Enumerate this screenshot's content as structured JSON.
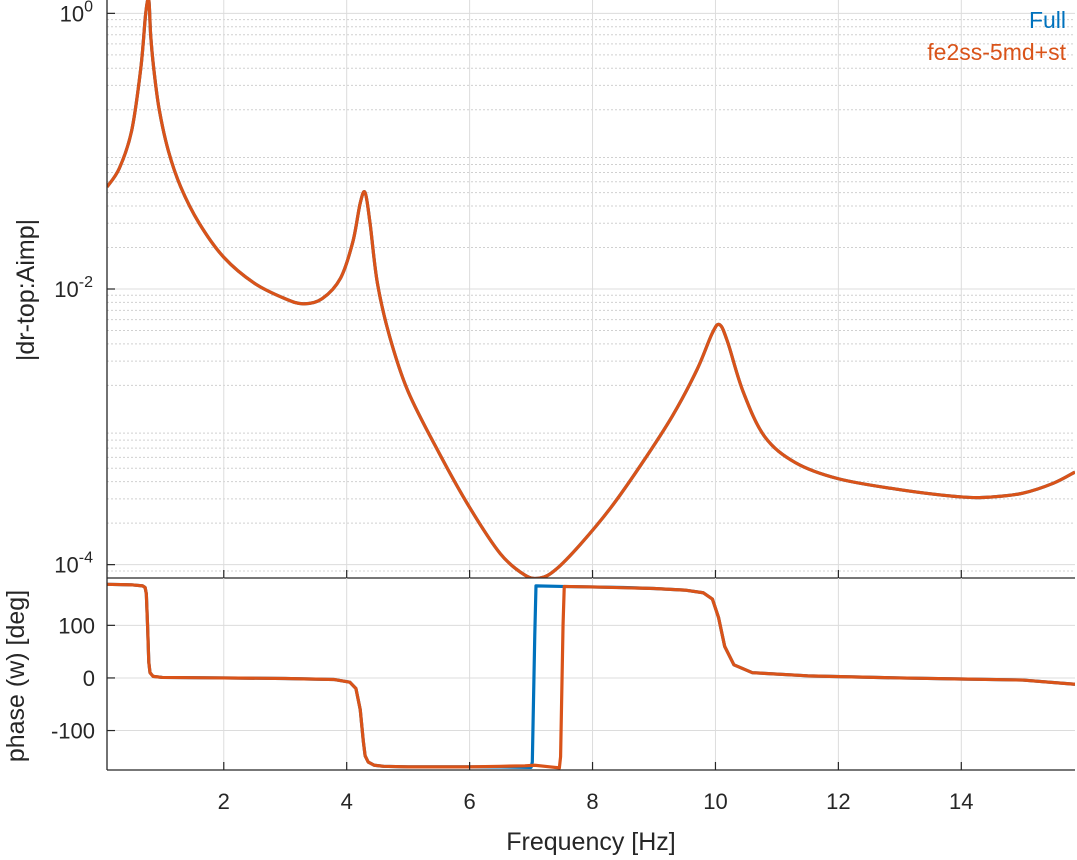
{
  "chart_data": [
    {
      "type": "line",
      "panel": "magnitude",
      "ylabel": "|dr-top:Aimp|",
      "yscale": "log",
      "xlim": [
        0.1,
        15.85
      ],
      "ylim": [
        8e-05,
        1.25
      ],
      "yticks": [
        0.0001,
        0.01,
        1
      ],
      "ytick_labels": [
        {
          "base": "10",
          "exp": "-4"
        },
        {
          "base": "10",
          "exp": "-2"
        },
        {
          "base": "10",
          "exp": "0"
        }
      ],
      "grid": true,
      "minor_grid": true,
      "legend_position": "top-right",
      "series": [
        {
          "name": "Full",
          "color": "#0072BD",
          "x": [
            0.1,
            0.3,
            0.5,
            0.65,
            0.73,
            0.78,
            0.81,
            0.86,
            0.95,
            1.1,
            1.3,
            1.6,
            2.0,
            2.5,
            3.0,
            3.3,
            3.6,
            3.9,
            4.1,
            4.22,
            4.3,
            4.38,
            4.5,
            4.7,
            5.0,
            5.5,
            6.0,
            6.5,
            6.9,
            7.15,
            7.4,
            7.8,
            8.3,
            8.8,
            9.3,
            9.7,
            9.95,
            10.07,
            10.2,
            10.45,
            10.8,
            11.3,
            12.0,
            13.0,
            14.0,
            14.5,
            15.0,
            15.5,
            15.85
          ],
          "y": [
            0.055,
            0.075,
            0.14,
            0.4,
            1.0,
            1.25,
            0.7,
            0.4,
            0.2,
            0.1,
            0.055,
            0.03,
            0.017,
            0.011,
            0.0085,
            0.0078,
            0.0085,
            0.012,
            0.022,
            0.042,
            0.05,
            0.03,
            0.011,
            0.0045,
            0.0018,
            0.00065,
            0.00026,
            0.00012,
            8.4e-05,
            8e-05,
            9.2e-05,
            0.00014,
            0.00026,
            0.00054,
            0.0012,
            0.0026,
            0.0048,
            0.0055,
            0.0041,
            0.0018,
            0.00085,
            0.00055,
            0.00042,
            0.00035,
            0.00031,
            0.00031,
            0.00033,
            0.00039,
            0.00047
          ]
        },
        {
          "name": "fe2ss-5md+st",
          "color": "#D95319",
          "x": [
            0.1,
            0.3,
            0.5,
            0.65,
            0.73,
            0.78,
            0.81,
            0.86,
            0.95,
            1.1,
            1.3,
            1.6,
            2.0,
            2.5,
            3.0,
            3.3,
            3.6,
            3.9,
            4.1,
            4.22,
            4.3,
            4.38,
            4.5,
            4.7,
            5.0,
            5.5,
            6.0,
            6.5,
            6.9,
            7.15,
            7.4,
            7.8,
            8.3,
            8.8,
            9.3,
            9.7,
            9.95,
            10.07,
            10.2,
            10.45,
            10.8,
            11.3,
            12.0,
            13.0,
            14.0,
            14.5,
            15.0,
            15.5,
            15.85
          ],
          "y": [
            0.055,
            0.075,
            0.14,
            0.4,
            1.0,
            1.25,
            0.7,
            0.4,
            0.2,
            0.1,
            0.055,
            0.03,
            0.017,
            0.011,
            0.0085,
            0.0078,
            0.0085,
            0.012,
            0.022,
            0.042,
            0.05,
            0.03,
            0.011,
            0.0045,
            0.0018,
            0.00065,
            0.00026,
            0.00012,
            8.4e-05,
            8e-05,
            9.2e-05,
            0.00014,
            0.00026,
            0.00054,
            0.0012,
            0.0026,
            0.0048,
            0.0055,
            0.0041,
            0.0018,
            0.00085,
            0.00055,
            0.00042,
            0.00035,
            0.00031,
            0.00031,
            0.00033,
            0.00039,
            0.00047
          ]
        }
      ]
    },
    {
      "type": "line",
      "panel": "phase",
      "xlabel": "Frequency [Hz]",
      "ylabel": "phase (w) [deg]",
      "xlim": [
        0.1,
        15.85
      ],
      "ylim": [
        -175,
        190
      ],
      "xticks": [
        2,
        4,
        6,
        8,
        10,
        12,
        14
      ],
      "yticks": [
        -100,
        0,
        100
      ],
      "grid": true,
      "series": [
        {
          "name": "Full",
          "color": "#0072BD",
          "x": [
            0.1,
            0.5,
            0.68,
            0.72,
            0.74,
            0.76,
            0.78,
            0.8,
            0.85,
            1.0,
            2.0,
            3.0,
            3.8,
            4.05,
            4.15,
            4.22,
            4.27,
            4.3,
            4.35,
            4.45,
            4.6,
            5.0,
            6.0,
            6.5,
            7.0,
            7.02,
            7.06,
            7.08,
            7.5,
            8.5,
            9.0,
            9.5,
            9.8,
            9.95,
            10.05,
            10.15,
            10.3,
            10.6,
            11.5,
            13.0,
            14.0,
            15.0,
            15.85
          ],
          "y": [
            178,
            177,
            175,
            172,
            160,
            100,
            30,
            10,
            3,
            1,
            0,
            -1,
            -3,
            -8,
            -20,
            -60,
            -120,
            -148,
            -160,
            -166,
            -168,
            -169,
            -169,
            -169,
            -170,
            -160,
            80,
            175,
            174,
            172,
            170,
            167,
            162,
            150,
            115,
            60,
            25,
            10,
            4,
            0,
            -2,
            -4,
            -12
          ]
        },
        {
          "name": "fe2ss-5md+st",
          "color": "#D95319",
          "x": [
            0.1,
            0.5,
            0.68,
            0.72,
            0.74,
            0.76,
            0.78,
            0.8,
            0.85,
            1.0,
            2.0,
            3.0,
            3.8,
            4.05,
            4.15,
            4.22,
            4.27,
            4.3,
            4.35,
            4.45,
            4.6,
            5.0,
            6.0,
            6.5,
            6.9,
            7.06,
            7.3,
            7.46,
            7.48,
            7.52,
            7.54,
            8.0,
            9.0,
            9.5,
            9.8,
            9.95,
            10.05,
            10.15,
            10.3,
            10.6,
            11.5,
            13.0,
            14.0,
            15.0,
            15.85
          ],
          "y": [
            178,
            177,
            175,
            172,
            160,
            100,
            30,
            10,
            3,
            1,
            0,
            -1,
            -3,
            -8,
            -20,
            -60,
            -120,
            -148,
            -160,
            -166,
            -168,
            -169,
            -169,
            -168,
            -167,
            -166,
            -169,
            -171,
            -150,
            100,
            174,
            173,
            170,
            167,
            162,
            150,
            115,
            60,
            25,
            10,
            4,
            0,
            -2,
            -4,
            -12
          ]
        }
      ]
    }
  ]
}
